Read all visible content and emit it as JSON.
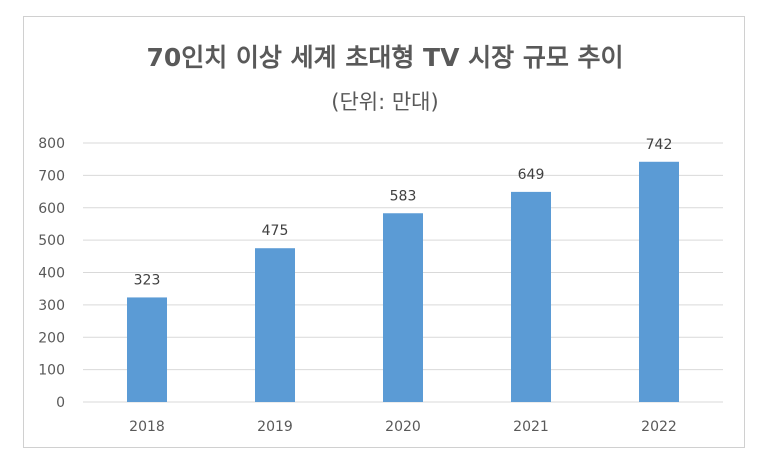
{
  "chart_data": {
    "type": "bar",
    "title": "70인치 이상 세계 초대형 TV 시장 규모 추이",
    "subtitle": "(단위: 만대)",
    "categories": [
      "2018",
      "2019",
      "2020",
      "2021",
      "2022"
    ],
    "values": [
      323,
      475,
      583,
      649,
      742
    ],
    "data_labels": [
      "323",
      "475",
      "583",
      "649",
      "742"
    ],
    "y_ticks": [
      "0",
      "100",
      "200",
      "300",
      "400",
      "500",
      "600",
      "700",
      "800"
    ],
    "ylim": [
      0,
      800
    ],
    "grid": true,
    "legend": "none",
    "bar_color": "#5b9bd5",
    "grid_color": "#d9d9d9",
    "text_color": "#595959"
  }
}
